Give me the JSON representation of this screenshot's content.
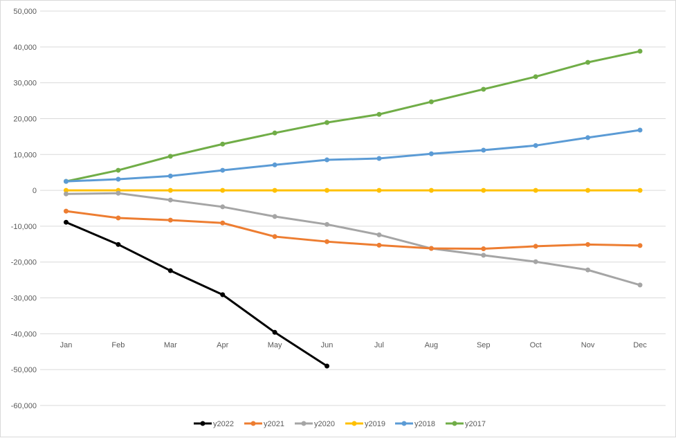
{
  "chart_data": {
    "type": "line",
    "title": "",
    "xlabel": "",
    "ylabel": "",
    "ylim": [
      -60000,
      50000
    ],
    "yticks": [
      50000,
      40000,
      30000,
      20000,
      10000,
      0,
      -10000,
      -20000,
      -30000,
      -40000,
      -50000,
      -60000
    ],
    "ytick_labels": [
      "50,000",
      "40,000",
      "30,000",
      "20,000",
      "10,000",
      "0",
      "-10,000",
      "-20,000",
      "-30,000",
      "-40,000",
      "-50,000",
      "-60,000"
    ],
    "grid": true,
    "legend_position": "bottom",
    "categories": [
      "Jan",
      "Feb",
      "Mar",
      "Apr",
      "May",
      "Jun",
      "Jul",
      "Aug",
      "Sep",
      "Oct",
      "Nov",
      "Dec"
    ],
    "series": [
      {
        "name": "y2022",
        "color": "#000000",
        "values": [
          -8900,
          -15100,
          -22400,
          -29100,
          -39600,
          -49000,
          null,
          null,
          null,
          null,
          null,
          null
        ]
      },
      {
        "name": "y2021",
        "color": "#ED7D31",
        "values": [
          -5800,
          -7700,
          -8300,
          -9100,
          -12900,
          -14300,
          -15300,
          -16200,
          -16300,
          -15600,
          -15100,
          -15400
        ]
      },
      {
        "name": "y2020",
        "color": "#A5A5A5",
        "values": [
          -1000,
          -800,
          -2700,
          -4600,
          -7300,
          -9500,
          -12400,
          -16200,
          -18100,
          -19900,
          -22200,
          -26400
        ]
      },
      {
        "name": "y2019",
        "color": "#FFC000",
        "values": [
          0,
          0,
          0,
          0,
          0,
          0,
          0,
          0,
          0,
          0,
          0,
          0
        ]
      },
      {
        "name": "y2018",
        "color": "#5B9BD5",
        "values": [
          2500,
          3100,
          4000,
          5600,
          7100,
          8500,
          8900,
          10200,
          11200,
          12500,
          14700,
          16800
        ]
      },
      {
        "name": "y2017",
        "color": "#70AD47",
        "values": [
          2500,
          5600,
          9500,
          12900,
          16000,
          18900,
          21200,
          24700,
          28200,
          31700,
          35700,
          38800
        ]
      }
    ]
  },
  "legend": {
    "items": [
      {
        "label": "y2022",
        "color": "#000000"
      },
      {
        "label": "y2021",
        "color": "#ED7D31"
      },
      {
        "label": "y2020",
        "color": "#A5A5A5"
      },
      {
        "label": "y2019",
        "color": "#FFC000"
      },
      {
        "label": "y2018",
        "color": "#5B9BD5"
      },
      {
        "label": "y2017",
        "color": "#70AD47"
      }
    ]
  },
  "colors": {
    "gridline": "#d9d9d9",
    "axis_text": "#595959",
    "border": "#d9d9d9"
  }
}
